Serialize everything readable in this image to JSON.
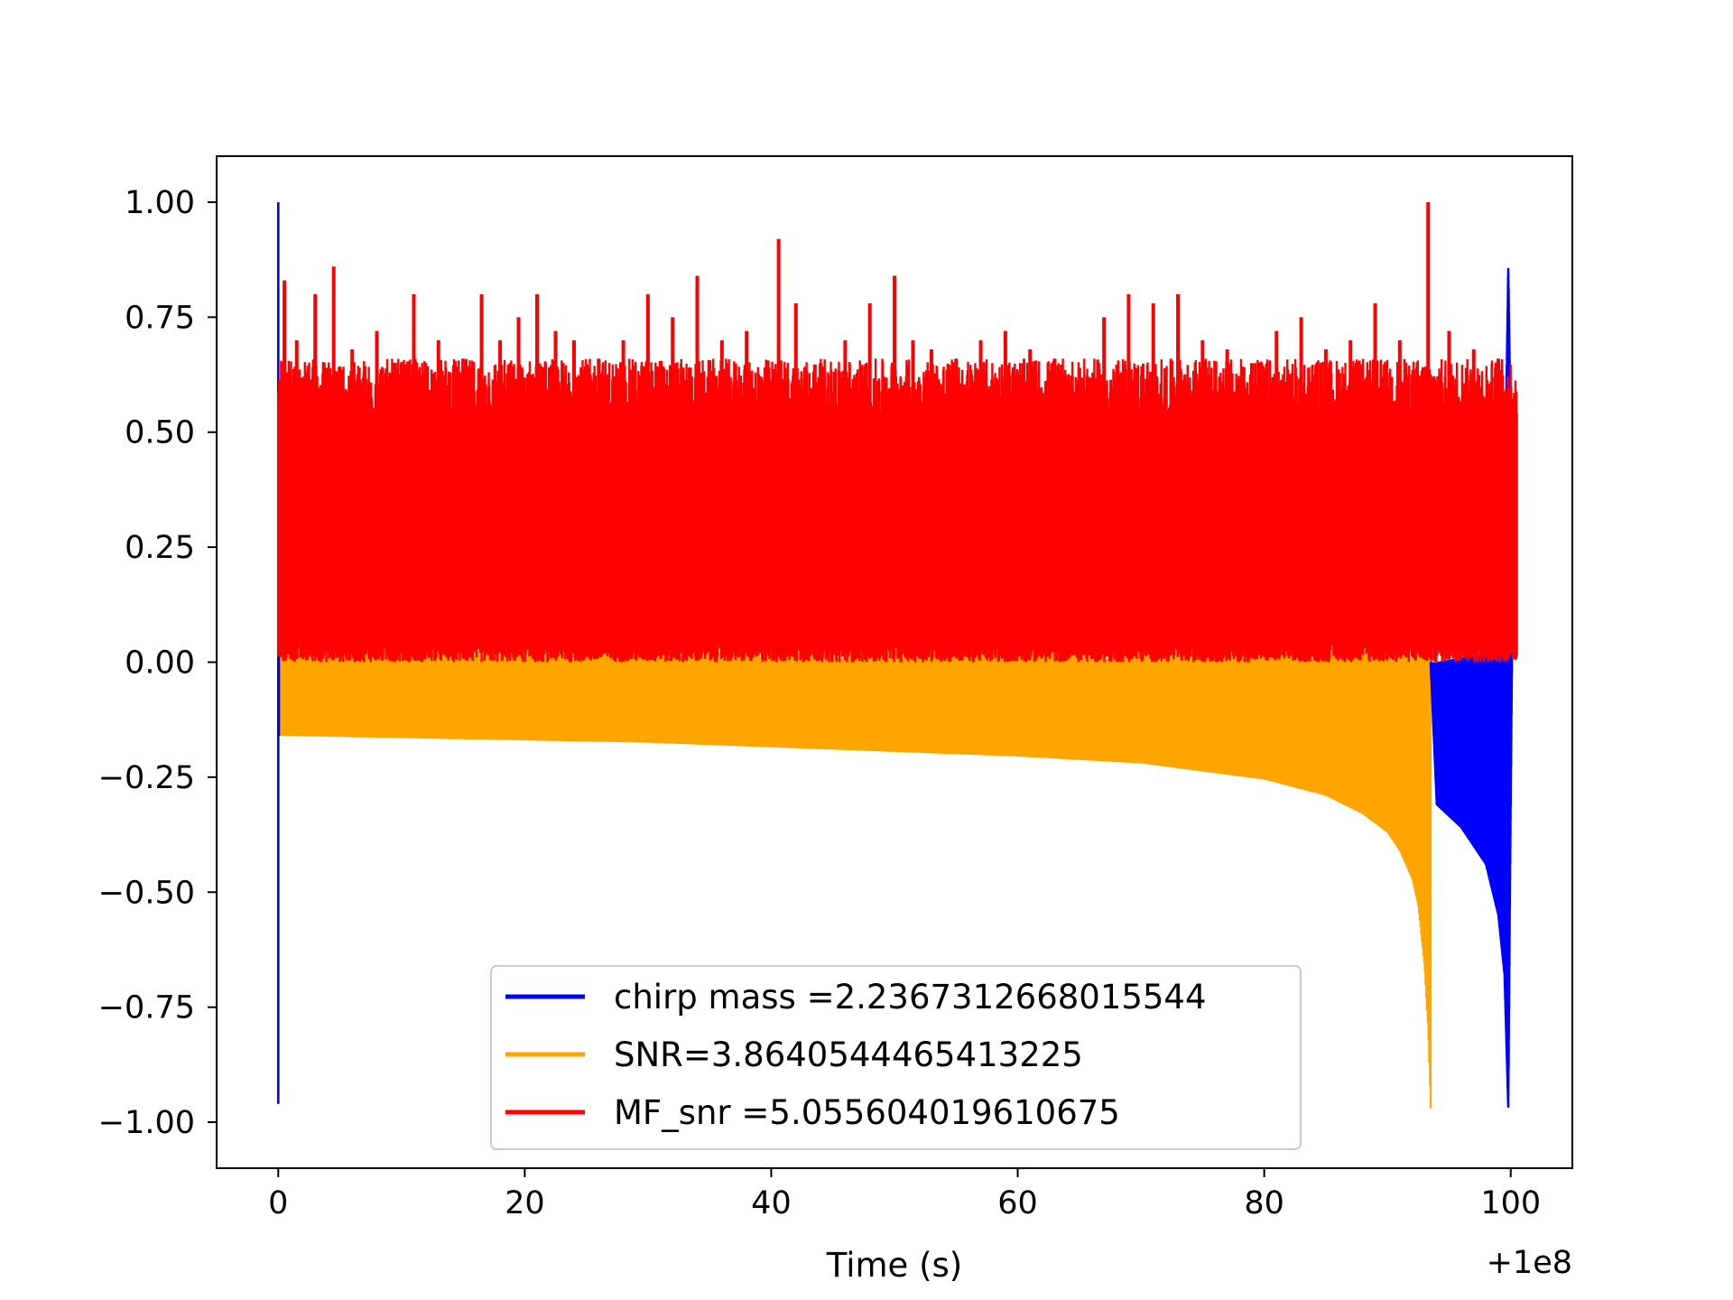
{
  "chart_data": {
    "type": "line",
    "title": "",
    "xlabel": "Time (s)",
    "ylabel": "",
    "x_offset_label": "+1e8",
    "xlim": [
      -5,
      105
    ],
    "ylim": [
      -1.1,
      1.1
    ],
    "x_ticks": [
      0,
      20,
      40,
      60,
      80,
      100
    ],
    "x_tick_labels": [
      "0",
      "20",
      "40",
      "60",
      "80",
      "100"
    ],
    "y_ticks": [
      1.0,
      0.75,
      0.5,
      0.25,
      0.0,
      -0.25,
      -0.5,
      -0.75,
      -1.0
    ],
    "y_tick_labels": [
      "1.00",
      "0.75",
      "0.50",
      "0.25",
      "0.00",
      "−0.25",
      "−0.50",
      "−0.75",
      "−1.00"
    ],
    "grid": false,
    "legend_position": "lower-center",
    "series": [
      {
        "name": "chirp mass =2.2367312668015544",
        "color": "#0000ff",
        "envelope": {
          "x": [
            0,
            0.05,
            0.3,
            93.5,
            94,
            96,
            98,
            99,
            99.5,
            99.8,
            100.0,
            100.1
          ],
          "upper": [
            1.0,
            0.6,
            0.0,
            0.0,
            0.0,
            0.01,
            0.02,
            0.05,
            0.3,
            0.86,
            0.5,
            0.0
          ],
          "lower": [
            -0.96,
            -0.16,
            0.0,
            0.0,
            -0.31,
            -0.36,
            -0.44,
            -0.55,
            -0.68,
            -0.97,
            -0.3,
            0.0
          ]
        }
      },
      {
        "name": "SNR=3.8640544465413225",
        "color": "#ffa500",
        "envelope": {
          "x": [
            0,
            10,
            20,
            30,
            40,
            50,
            60,
            70,
            80,
            85,
            88,
            90,
            91,
            92,
            92.5,
            93,
            93.3,
            93.5
          ],
          "upper": [
            0.05,
            0.02,
            0.02,
            0.02,
            0.02,
            0.02,
            0.02,
            0.02,
            0.02,
            0.02,
            0.02,
            0.02,
            0.02,
            0.02,
            0.02,
            0.02,
            0.01,
            0.0
          ],
          "lower": [
            -0.16,
            -0.165,
            -0.17,
            -0.175,
            -0.185,
            -0.195,
            -0.205,
            -0.22,
            -0.255,
            -0.29,
            -0.33,
            -0.37,
            -0.41,
            -0.47,
            -0.53,
            -0.66,
            -0.8,
            -0.97
          ]
        }
      },
      {
        "name": "MF_snr =5.055604019610675",
        "color": "#ff0000",
        "band": {
          "x_range": [
            0,
            100.5
          ],
          "lower": 0.0,
          "upper": 0.6
        },
        "peaks": {
          "x": [
            0.5,
            1.5,
            3,
            4.5,
            6,
            8,
            10,
            11,
            13,
            15,
            16.5,
            18,
            19.5,
            21,
            22.5,
            24,
            26,
            28,
            30,
            32,
            34,
            36,
            38,
            40.6,
            42,
            44,
            46,
            48,
            50,
            51.5,
            53,
            55,
            57,
            59,
            61,
            63,
            65,
            67,
            69,
            71,
            73,
            75,
            77,
            79,
            81,
            83,
            85,
            87,
            89,
            91,
            93.3,
            95,
            97,
            99
          ],
          "y": [
            0.83,
            0.7,
            0.8,
            0.86,
            0.68,
            0.72,
            0.65,
            0.8,
            0.7,
            0.66,
            0.8,
            0.7,
            0.75,
            0.8,
            0.72,
            0.7,
            0.66,
            0.7,
            0.8,
            0.75,
            0.84,
            0.7,
            0.72,
            0.92,
            0.78,
            0.65,
            0.7,
            0.78,
            0.84,
            0.7,
            0.68,
            0.66,
            0.7,
            0.72,
            0.68,
            0.66,
            0.64,
            0.75,
            0.8,
            0.78,
            0.8,
            0.7,
            0.68,
            0.65,
            0.72,
            0.75,
            0.68,
            0.7,
            0.78,
            0.7,
            1.0,
            0.72,
            0.68,
            0.66
          ]
        }
      }
    ]
  }
}
